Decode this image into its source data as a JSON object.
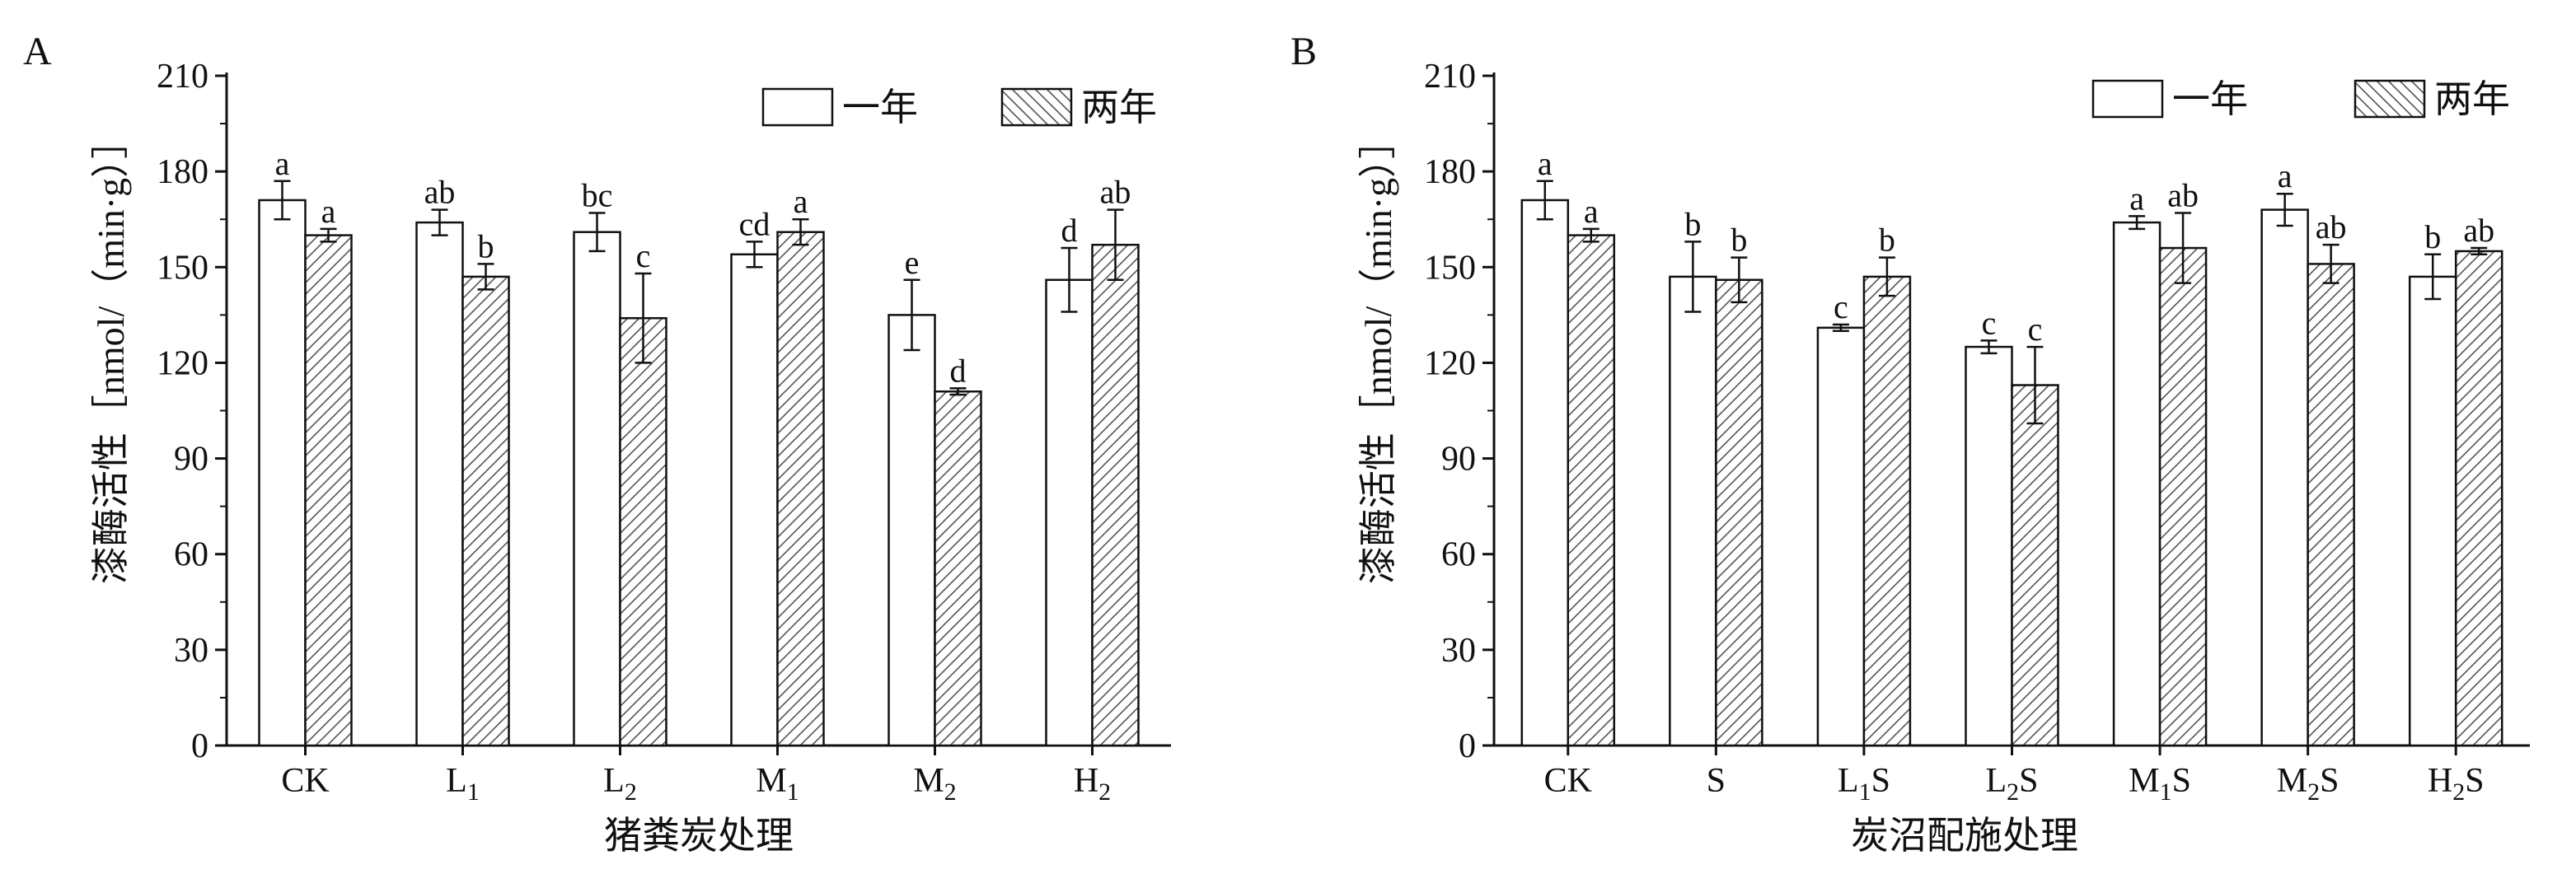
{
  "colors": {
    "ink": "#111111",
    "bar_fill": "#ffffff",
    "hatch": "#555555"
  },
  "chart_data": [
    {
      "panel": "A",
      "type": "bar",
      "ylabel": "漆酶活性［nmol/（min·g）］",
      "xlabel": "猪粪炭处理",
      "ylim": [
        0,
        210
      ],
      "yticks": [
        "0",
        "30",
        "60",
        "90",
        "120",
        "150",
        "180",
        "210"
      ],
      "legend_placement": "top-right",
      "categories": [
        {
          "base": "CK",
          "sub": ""
        },
        {
          "base": "L",
          "sub": "1"
        },
        {
          "base": "L",
          "sub": "2"
        },
        {
          "base": "M",
          "sub": "1"
        },
        {
          "base": "M",
          "sub": "2"
        },
        {
          "base": "H",
          "sub": "2"
        }
      ],
      "series": [
        {
          "name": "一年",
          "pattern": "plain",
          "values": [
            171,
            164,
            161,
            154,
            135,
            146
          ],
          "errors": [
            6,
            4,
            6,
            4,
            11,
            10
          ],
          "letters": [
            "a",
            "ab",
            "bc",
            "cd",
            "e",
            "d"
          ]
        },
        {
          "name": "两年",
          "pattern": "hatched",
          "values": [
            160,
            147,
            134,
            161,
            111,
            157
          ],
          "errors": [
            2,
            4,
            14,
            4,
            1,
            11
          ],
          "letters": [
            "a",
            "b",
            "c",
            "a",
            "d",
            "ab"
          ]
        }
      ]
    },
    {
      "panel": "B",
      "type": "bar",
      "ylabel": "漆酶活性［nmol/（min·g）］",
      "xlabel": "炭沼配施处理",
      "ylim": [
        0,
        210
      ],
      "yticks": [
        "0",
        "30",
        "60",
        "90",
        "120",
        "150",
        "180",
        "210"
      ],
      "legend_placement": "top-right",
      "categories": [
        {
          "base": "CK",
          "sub": ""
        },
        {
          "base": "S",
          "sub": ""
        },
        {
          "base": "L",
          "sub": "1",
          "suffix": "S"
        },
        {
          "base": "L",
          "sub": "2",
          "suffix": "S"
        },
        {
          "base": "M",
          "sub": "1",
          "suffix": "S"
        },
        {
          "base": "M",
          "sub": "2",
          "suffix": "S"
        },
        {
          "base": "H",
          "sub": "2",
          "suffix": "S"
        }
      ],
      "series": [
        {
          "name": "一年",
          "pattern": "plain",
          "values": [
            171,
            147,
            131,
            125,
            164,
            168,
            147
          ],
          "errors": [
            6,
            11,
            1,
            2,
            2,
            5,
            7
          ],
          "letters": [
            "a",
            "b",
            "c",
            "c",
            "a",
            "a",
            "b"
          ]
        },
        {
          "name": "两年",
          "pattern": "hatched",
          "values": [
            160,
            146,
            147,
            113,
            156,
            151,
            155
          ],
          "errors": [
            2,
            7,
            6,
            12,
            11,
            6,
            1
          ],
          "letters": [
            "a",
            "b",
            "b",
            "c",
            "ab",
            "ab",
            "ab"
          ]
        }
      ]
    }
  ]
}
